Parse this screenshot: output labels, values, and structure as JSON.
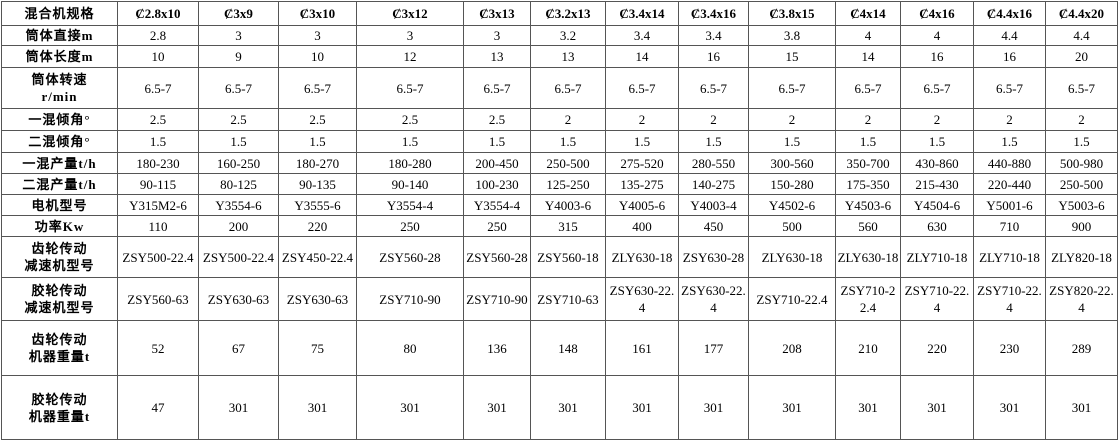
{
  "table": {
    "header": [
      "混合机规格",
      "Ȼ2.8x10",
      "Ȼ3x9",
      "Ȼ3x10",
      "Ȼ3x12",
      "Ȼ3x13",
      "Ȼ3.2x13",
      "Ȼ3.4x14",
      "Ȼ3.4x16",
      "Ȼ3.8x15",
      "Ȼ4x14",
      "Ȼ4x16",
      "Ȼ4.4x16",
      "Ȼ4.4x20"
    ],
    "rows": [
      [
        "筒体直接m",
        "2.8",
        "3",
        "3",
        "3",
        "3",
        "3.2",
        "3.4",
        "3.4",
        "3.8",
        "4",
        "4",
        "4.4",
        "4.4"
      ],
      [
        "筒体长度m",
        "10",
        "9",
        "10",
        "12",
        "13",
        "13",
        "14",
        "16",
        "15",
        "14",
        "16",
        "16",
        "20"
      ],
      [
        "筒体转速\nr/min",
        "6.5-7",
        "6.5-7",
        "6.5-7",
        "6.5-7",
        "6.5-7",
        "6.5-7",
        "6.5-7",
        "6.5-7",
        "6.5-7",
        "6.5-7",
        "6.5-7",
        "6.5-7",
        "6.5-7"
      ],
      [
        "一混倾角°",
        "2.5",
        "2.5",
        "2.5",
        "2.5",
        "2.5",
        "2",
        "2",
        "2",
        "2",
        "2",
        "2",
        "2",
        "2"
      ],
      [
        "二混倾角°",
        "1.5",
        "1.5",
        "1.5",
        "1.5",
        "1.5",
        "1.5",
        "1.5",
        "1.5",
        "1.5",
        "1.5",
        "1.5",
        "1.5",
        "1.5"
      ],
      [
        "一混产量t/h",
        "180-230",
        "160-250",
        "180-270",
        "180-280",
        "200-450",
        "250-500",
        "275-520",
        "280-550",
        "300-560",
        "350-700",
        "430-860",
        "440-880",
        "500-980"
      ],
      [
        "二混产量t/h",
        "90-115",
        "80-125",
        "90-135",
        "90-140",
        "100-230",
        "125-250",
        "135-275",
        "140-275",
        "150-280",
        "175-350",
        "215-430",
        "220-440",
        "250-500"
      ],
      [
        "电机型号",
        "Y315M2-6",
        "Y3554-6",
        "Y3555-6",
        "Y3554-4",
        "Y3554-4",
        "Y4003-6",
        "Y4005-6",
        "Y4003-4",
        "Y4502-6",
        "Y4503-6",
        "Y4504-6",
        "Y5001-6",
        "Y5003-6"
      ],
      [
        "功率Kw",
        "110",
        "200",
        "220",
        "250",
        "250",
        "315",
        "400",
        "450",
        "500",
        "560",
        "630",
        "710",
        "900"
      ],
      [
        "齿轮传动\n减速机型号",
        "ZSY500-22.4",
        "ZSY500-22.4",
        "ZSY450-22.4",
        "ZSY560-28",
        "ZSY560-28",
        "ZSY560-18",
        "ZLY630-18",
        "ZSY630-28",
        "ZLY630-18",
        "ZLY630-18",
        "ZLY710-18",
        "ZLY710-18",
        "ZLY820-18"
      ],
      [
        "胶轮传动\n减速机型号",
        "ZSY560-63",
        "ZSY630-63",
        "ZSY630-63",
        "ZSY710-90",
        "ZSY710-90",
        "ZSY710-63",
        "ZSY630-22.4",
        "ZSY630-22.4",
        "ZSY710-22.4",
        "ZSY710-22.4",
        "ZSY710-22.4",
        "ZSY710-22.4",
        "ZSY820-22.4"
      ],
      [
        "齿轮传动\n机器重量t",
        "52",
        "67",
        "75",
        "80",
        "136",
        "148",
        "161",
        "177",
        "208",
        "210",
        "220",
        "230",
        "289"
      ],
      [
        "胶轮传动\n机器重量t",
        "47",
        "301",
        "301",
        "301",
        "301",
        "301",
        "301",
        "301",
        "301",
        "301",
        "301",
        "301",
        "301"
      ]
    ]
  }
}
